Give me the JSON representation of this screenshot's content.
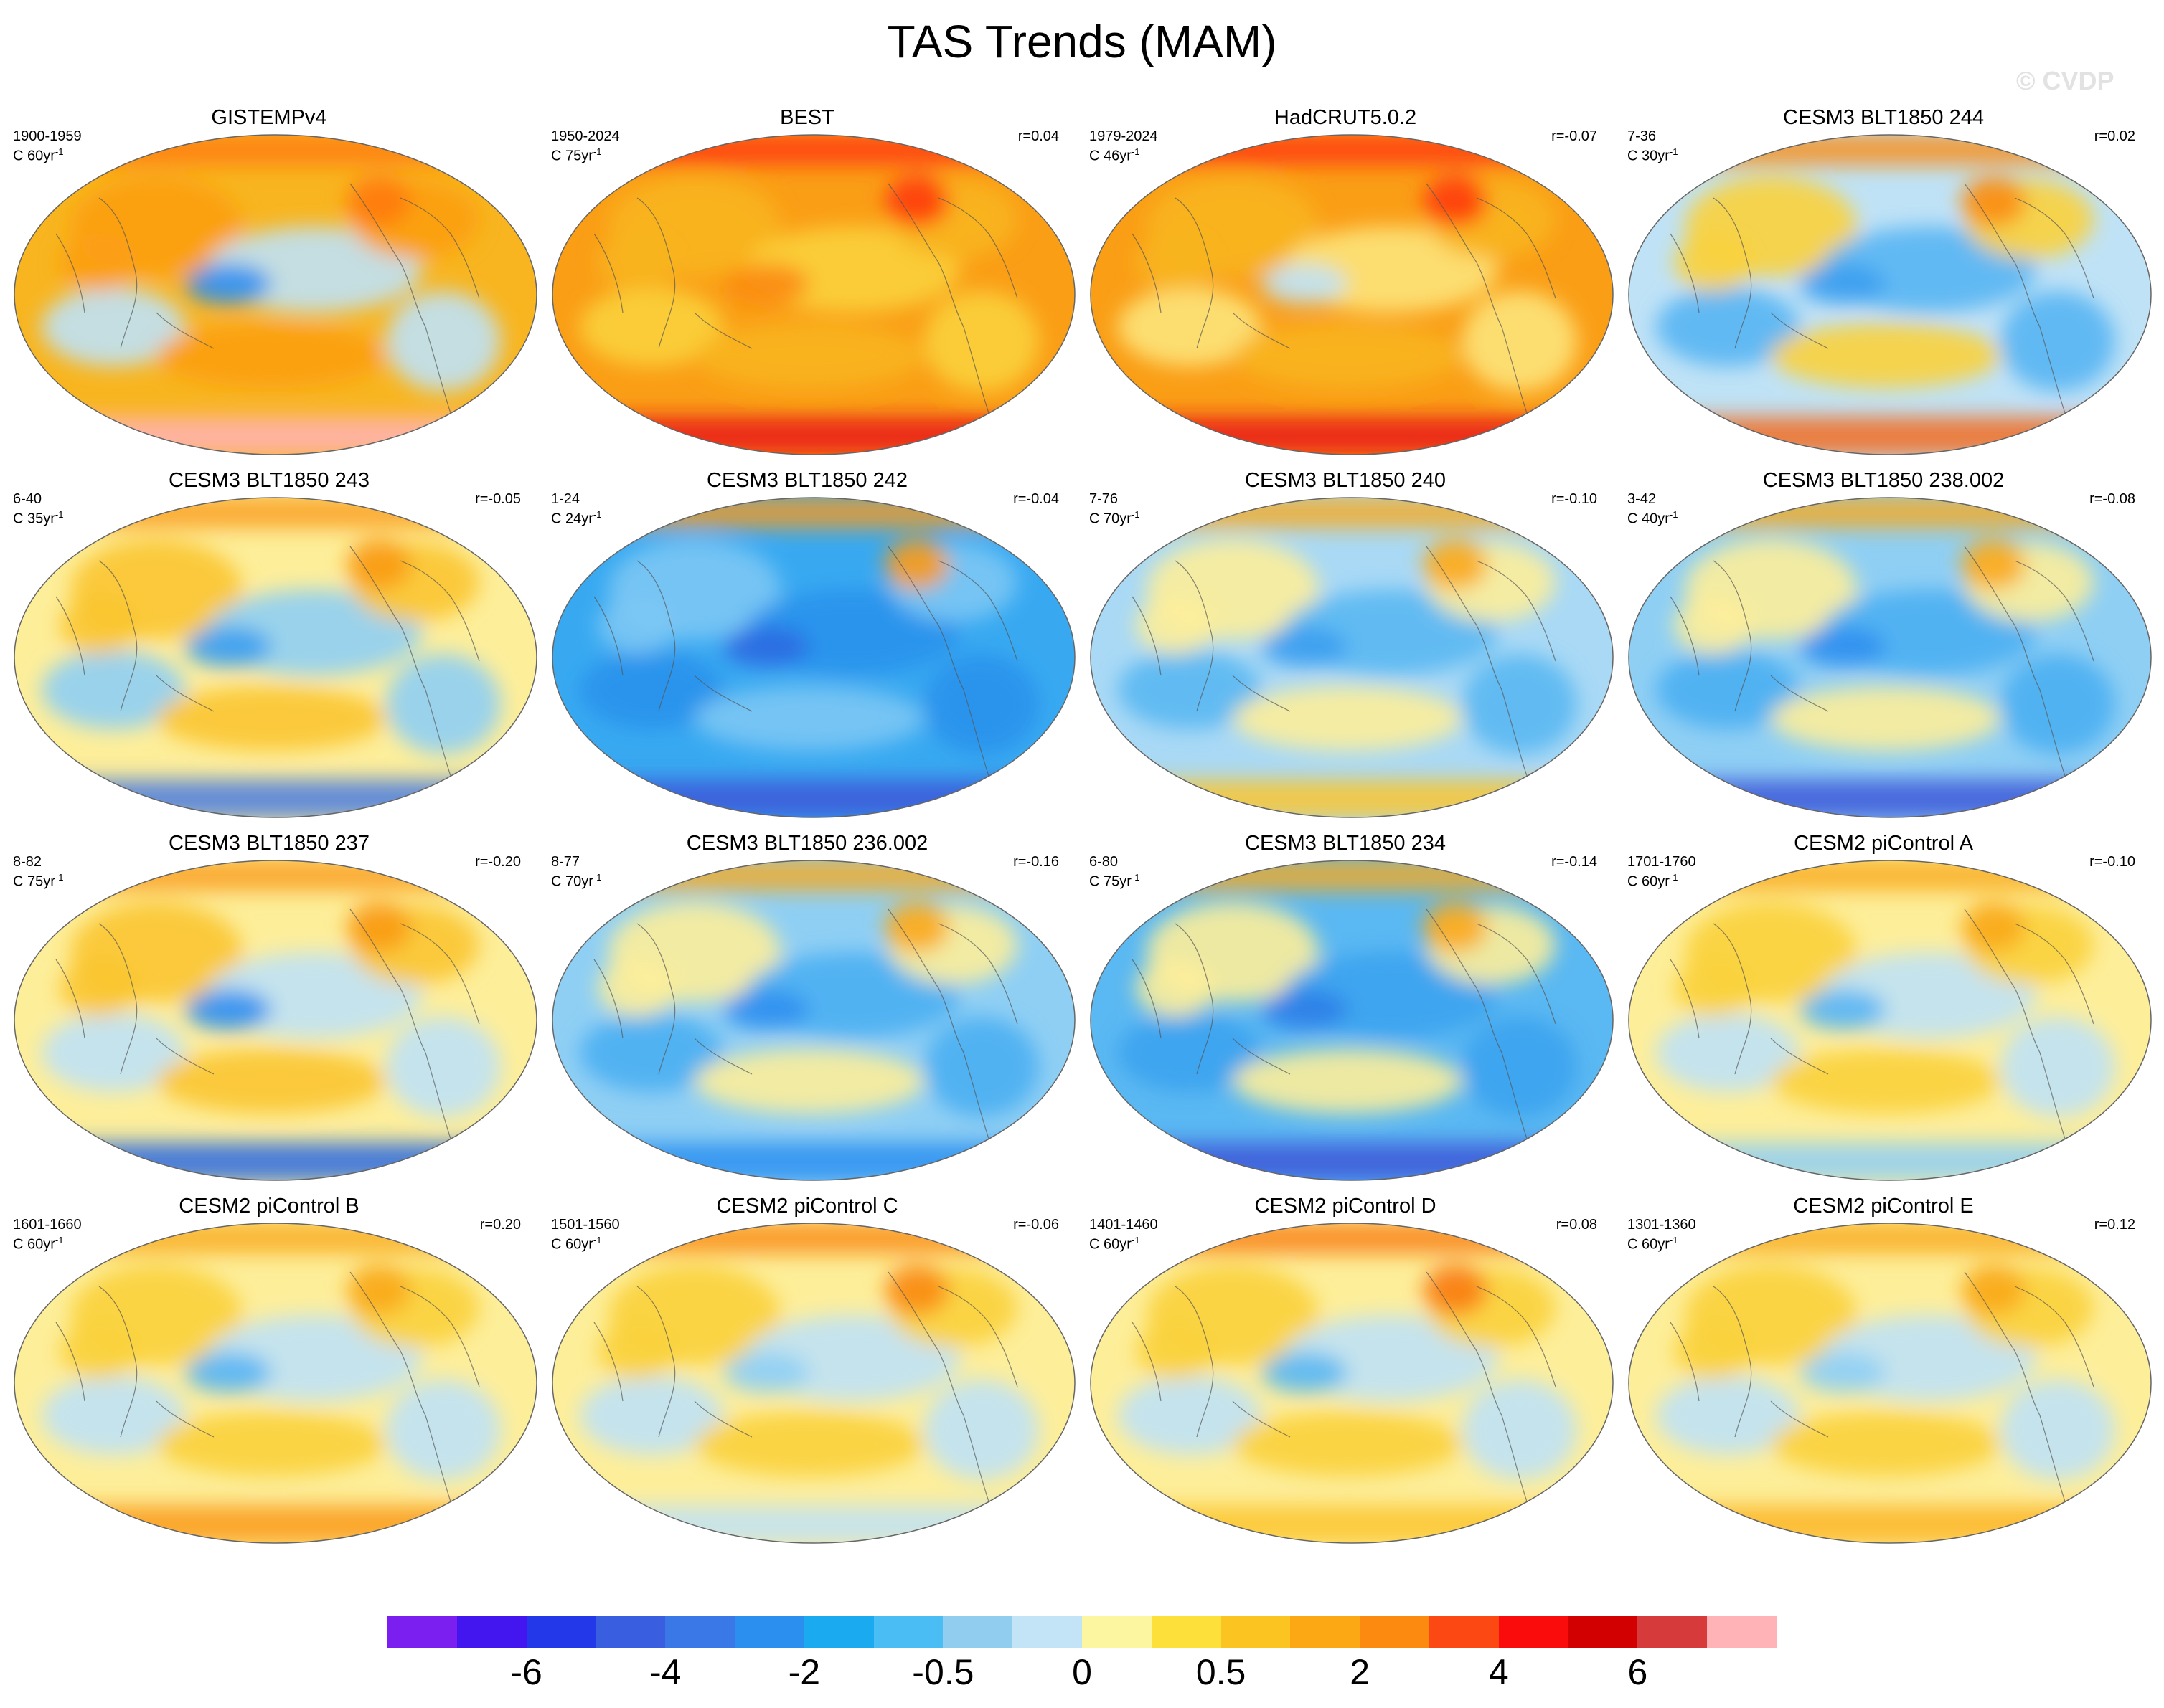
{
  "title": "TAS Trends (MAM)",
  "watermark": "© CVDP",
  "panels": [
    {
      "title": "GISTEMPv4",
      "period": "1900-1959",
      "rate": "C 60yr",
      "rate_sup": "-1",
      "corr": "",
      "base": "#f8b51f",
      "warm": "#fc9e13",
      "cool": "#bfe2f6",
      "strong": "#ff7a10",
      "cold": "#2f8ff0",
      "polar": "#ffb3b7"
    },
    {
      "title": "BEST",
      "period": "1950-2024",
      "rate": "C 75yr",
      "rate_sup": "-1",
      "corr": "r=0.04",
      "base": "#fa9e16",
      "warm": "#f8b51f",
      "cool": "#fbd13a",
      "strong": "#ff3a11",
      "cold": "#fc8a10",
      "polar": "#e91a14"
    },
    {
      "title": "HadCRUT5.0.2",
      "period": "1979-2024",
      "rate": "C 46yr",
      "rate_sup": "-1",
      "corr": "r=-0.07",
      "base": "#fa9e16",
      "warm": "#f8b51f",
      "cool": "#fde47a",
      "strong": "#ff3a11",
      "cold": "#bfe2f6",
      "polar": "#e91a14"
    },
    {
      "title": "CESM3 BLT1850 244",
      "period": "7-36",
      "rate": "C 30yr",
      "rate_sup": "-1",
      "corr": "r=0.02",
      "base": "#bfe2f6",
      "warm": "#fbd13a",
      "cool": "#58b5f3",
      "strong": "#fb8c12",
      "cold": "#3a9ef0",
      "polar": "#f26b22"
    },
    {
      "title": "CESM3 BLT1850 243",
      "period": "6-40",
      "rate": "C 35yr",
      "rate_sup": "-1",
      "corr": "r=-0.05",
      "base": "#fdee9a",
      "warm": "#fbc530",
      "cool": "#8fcff4",
      "strong": "#fa9a16",
      "cold": "#3a9ef0",
      "polar": "#4a7de0"
    },
    {
      "title": "CESM3 BLT1850 242",
      "period": "1-24",
      "rate": "C 24yr",
      "rate_sup": "-1",
      "corr": "r=-0.04",
      "base": "#38a9f1",
      "warm": "#7cc6f4",
      "cool": "#2992ec",
      "strong": "#fa9a16",
      "cold": "#2c6ae2",
      "polar": "#3d57d8"
    },
    {
      "title": "CESM3 BLT1850 240",
      "period": "7-76",
      "rate": "C 70yr",
      "rate_sup": "-1",
      "corr": "r=-0.10",
      "base": "#a9d9f5",
      "warm": "#fdee9a",
      "cool": "#5ab8f2",
      "strong": "#f9a91b",
      "cold": "#3a9ef0",
      "polar": "#fbc530"
    },
    {
      "title": "CESM3 BLT1850 238.002",
      "period": "3-42",
      "rate": "C 40yr",
      "rate_sup": "-1",
      "corr": "r=-0.08",
      "base": "#8fcff4",
      "warm": "#fdee9a",
      "cool": "#4aaff2",
      "strong": "#f9a91b",
      "cold": "#2f8ff0",
      "polar": "#3d57d8"
    },
    {
      "title": "CESM3 BLT1850 237",
      "period": "8-82",
      "rate": "C 75yr",
      "rate_sup": "-1",
      "corr": "r=-0.20",
      "base": "#fdee9a",
      "warm": "#fbc530",
      "cool": "#bfe2f6",
      "strong": "#fa9a16",
      "cold": "#2f8ff0",
      "polar": "#2c6ae2"
    },
    {
      "title": "CESM3 BLT1850 236.002",
      "period": "8-77",
      "rate": "C 70yr",
      "rate_sup": "-1",
      "corr": "r=-0.16",
      "base": "#8fcff4",
      "warm": "#fdee9a",
      "cool": "#4aaff2",
      "strong": "#f9a91b",
      "cold": "#2f8ff0",
      "polar": "#2c8ff0"
    },
    {
      "title": "CESM3 BLT1850 234",
      "period": "6-80",
      "rate": "C 75yr",
      "rate_sup": "-1",
      "corr": "r=-0.14",
      "base": "#5ab8f2",
      "warm": "#fdee9a",
      "cool": "#3aa3f0",
      "strong": "#f9a91b",
      "cold": "#2f7fe8",
      "polar": "#3d57d8"
    },
    {
      "title": "CESM2 piControl A",
      "period": "1701-1760",
      "rate": "C 60yr",
      "rate_sup": "-1",
      "corr": "r=-0.10",
      "base": "#fdee9a",
      "warm": "#fbd13a",
      "cool": "#bfe2f6",
      "strong": "#f9a91b",
      "cold": "#58b5f3",
      "polar": "#8fcff4"
    },
    {
      "title": "CESM2 piControl B",
      "period": "1601-1660",
      "rate": "C 60yr",
      "rate_sup": "-1",
      "corr": "r=0.20",
      "base": "#fdee9a",
      "warm": "#fbd13a",
      "cool": "#bfe2f6",
      "strong": "#f9a91b",
      "cold": "#58b5f3",
      "polar": "#fa9a16"
    },
    {
      "title": "CESM2 piControl C",
      "period": "1501-1560",
      "rate": "C 60yr",
      "rate_sup": "-1",
      "corr": "r=-0.06",
      "base": "#fdee9a",
      "warm": "#fbd13a",
      "cool": "#bfe2f6",
      "strong": "#fa8a14",
      "cold": "#8fcff4",
      "polar": "#bfe2f6"
    },
    {
      "title": "CESM2 piControl D",
      "period": "1401-1460",
      "rate": "C 60yr",
      "rate_sup": "-1",
      "corr": "r=0.08",
      "base": "#fdee9a",
      "warm": "#fbd13a",
      "cool": "#bfe2f6",
      "strong": "#f97c14",
      "cold": "#5ab8f2",
      "polar": "#fbc530"
    },
    {
      "title": "CESM2 piControl E",
      "period": "1301-1360",
      "rate": "C 60yr",
      "rate_sup": "-1",
      "corr": "r=0.12",
      "base": "#fdee9a",
      "warm": "#fbd13a",
      "cool": "#bfe2f6",
      "strong": "#f9a91b",
      "cold": "#8fcff4",
      "polar": "#fbb525"
    }
  ],
  "colorbar": {
    "colors": [
      "#7b1ff0",
      "#4416ef",
      "#2338e8",
      "#3a5ee0",
      "#3a78e8",
      "#2b8ff0",
      "#1aaaf0",
      "#4bbdf5",
      "#90cdee",
      "#c3e3f6",
      "#fdf6a0",
      "#fde03a",
      "#fbc420",
      "#fca814",
      "#fc8a10",
      "#fc4812",
      "#fa0c0c",
      "#d20000",
      "#d73a3a",
      "#ffb3b7"
    ],
    "labels": [
      {
        "text": "-6",
        "boundary": 2
      },
      {
        "text": "-4",
        "boundary": 4
      },
      {
        "text": "-2",
        "boundary": 6
      },
      {
        "text": "-0.5",
        "boundary": 8
      },
      {
        "text": "0",
        "boundary": 10
      },
      {
        "text": "0.5",
        "boundary": 12
      },
      {
        "text": "2",
        "boundary": 14
      },
      {
        "text": "4",
        "boundary": 16
      },
      {
        "text": "6",
        "boundary": 18
      }
    ]
  }
}
